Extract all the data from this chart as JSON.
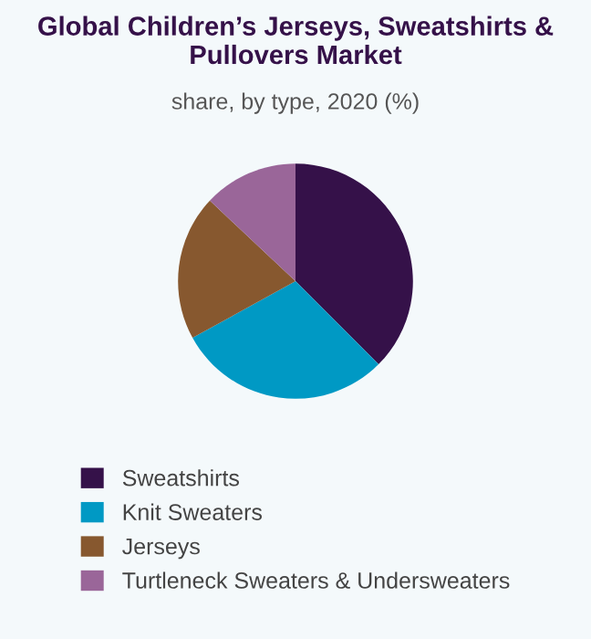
{
  "chart_data": {
    "type": "pie",
    "title": "Global Children’s Jerseys, Sweatshirts & Pullovers Market",
    "subtitle": "share, by type, 2020 (%)",
    "categories": [
      "Sweatshirts",
      "Knit Sweaters",
      "Jerseys",
      "Turtleneck Sweaters & Undersweaters"
    ],
    "values": [
      37.5,
      29.5,
      20,
      13
    ],
    "colors": [
      "#351149",
      "#0099c4",
      "#87582f",
      "#9a6699"
    ],
    "legend": "bottom"
  }
}
